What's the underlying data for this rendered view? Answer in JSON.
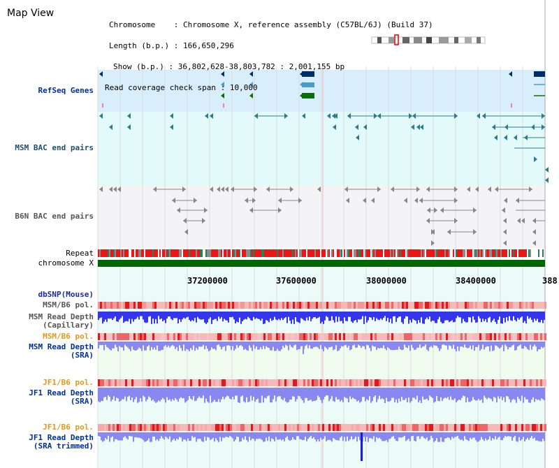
{
  "title": "Map View",
  "info": {
    "chromosome_label": "Chromosome",
    "chromosome_value": "Chromosome X, reference assembly (C57BL/6J) (Build 37)",
    "length_label": "Length (b.p.)",
    "length_value": "166,650,296",
    "show_label": "Show (b.p.)",
    "show_value": "36,802,628-38,803,782 : 2,001,155 bp",
    "read_label": "Read coverage check span",
    "read_value": "10,000"
  },
  "tracks": {
    "refseq": "RefSeq Genes",
    "msm_bac": "MSM BAC end pairs",
    "b6n_bac": "B6N BAC end pairs",
    "repeat": "Repeat",
    "chromosome": "chromosome X",
    "dbsnp": "dbSNP(Mouse)",
    "msm_pol_1": "MSM/B6 pol.",
    "msm_depth_cap_1": "MSM Read Depth",
    "msm_depth_cap_2": "(Capillary)",
    "msm_pol_2": "MSM/B6 pol.",
    "msm_depth_sra_1": "MSM Read Depth",
    "msm_depth_sra_2": "(SRA)",
    "jf1_pol_1": "JF1/B6 pol.",
    "jf1_depth_1": "JF1 Read Depth",
    "jf1_depth_2": "(SRA)",
    "jf1_pol_2": "JF1/B6 pol.",
    "jf1_trim_1": "JF1 Read Depth",
    "jf1_trim_2": "(SRA trimmed)"
  },
  "axis": {
    "tick_1": "37200000",
    "tick_2": "37600000",
    "tick_3": "38000000",
    "tick_4": "38400000",
    "tick_5": "388"
  },
  "colors": {
    "refseq_bg": "#d8eefa",
    "msm_bg": "#e2fbfa",
    "b6n_bg": "#f4f4f6",
    "lower_bg": "#ecfbf8",
    "sra_bg": "#f0fcee",
    "gene_navy": "#002d68",
    "gene_blue": "#4a9cc8",
    "gene_green": "#0a6e0a",
    "bac_teal": "#2c7a8c",
    "chrom_green": "#006600",
    "depth_blue": "#3535ee",
    "depth_light": "#8888f0"
  }
}
